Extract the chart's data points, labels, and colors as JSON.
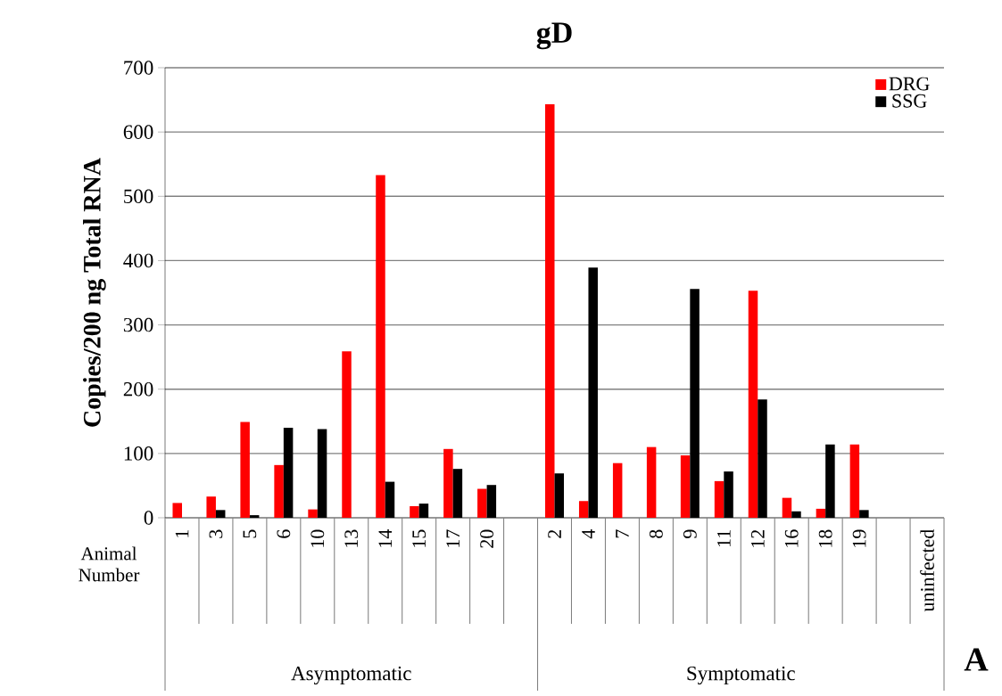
{
  "chart_data": {
    "type": "bar",
    "title": "gD",
    "ylabel": "Copies/200 ng Total RNA",
    "categories": [
      "1",
      "3",
      "5",
      "6",
      "10",
      "13",
      "14",
      "15",
      "17",
      "20",
      null,
      "2",
      "4",
      "7",
      "8",
      "9",
      "11",
      "12",
      "16",
      "18",
      "19",
      null,
      "uninfected"
    ],
    "series": [
      {
        "name": "DRG",
        "color": "#ff0000",
        "values": [
          23,
          33,
          149,
          82,
          13,
          259,
          533,
          18,
          107,
          45,
          null,
          643,
          26,
          85,
          110,
          97,
          57,
          353,
          31,
          14,
          114,
          null,
          null
        ]
      },
      {
        "name": "SSG",
        "color": "#000000",
        "values": [
          0,
          12,
          4,
          140,
          138,
          0,
          56,
          22,
          76,
          51,
          null,
          69,
          389,
          0,
          0,
          356,
          72,
          184,
          10,
          114,
          12,
          null,
          null
        ]
      }
    ],
    "ylim": [
      0,
      700
    ],
    "yticks": [
      0,
      100,
      200,
      300,
      400,
      500,
      600,
      700
    ],
    "grid": "y",
    "legend": "top right",
    "annotations": [
      "Animal Number",
      "Asymptomatic",
      "Symptomatic",
      "A"
    ]
  }
}
